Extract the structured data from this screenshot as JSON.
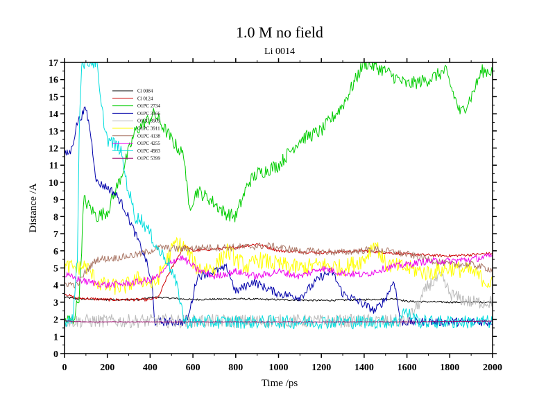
{
  "chart_data": {
    "type": "line",
    "title": "1.0 M no field",
    "subtitle": "Li 0014",
    "xlabel": "Time /ps",
    "ylabel": "Distance /A",
    "xlim": [
      0,
      2000
    ],
    "ylim": [
      0,
      17
    ],
    "xticks": [
      0,
      200,
      400,
      600,
      800,
      1000,
      1200,
      1400,
      1600,
      1800,
      2000
    ],
    "yticks": [
      0,
      1,
      2,
      3,
      4,
      5,
      6,
      7,
      8,
      9,
      10,
      11,
      12,
      13,
      14,
      15,
      16,
      17
    ],
    "legend_position": "top-left",
    "series": [
      {
        "name": "Cl 0084",
        "color": "#000000",
        "noise": 0.05,
        "points": [
          [
            0,
            3.3
          ],
          [
            50,
            3.2
          ],
          [
            200,
            3.15
          ],
          [
            350,
            3.15
          ],
          [
            420,
            3.3
          ],
          [
            600,
            3.15
          ],
          [
            800,
            3.2
          ],
          [
            1000,
            3.15
          ],
          [
            1200,
            3.1
          ],
          [
            1400,
            3.15
          ],
          [
            1550,
            3.2
          ],
          [
            1600,
            3.05
          ],
          [
            1800,
            3.0
          ],
          [
            2000,
            3.0
          ]
        ]
      },
      {
        "name": "Cl 0124",
        "color": "#cc0000",
        "noise": 0.08,
        "points": [
          [
            0,
            3.5
          ],
          [
            50,
            3.25
          ],
          [
            200,
            3.15
          ],
          [
            400,
            3.15
          ],
          [
            440,
            3.3
          ],
          [
            480,
            4.5
          ],
          [
            560,
            6.3
          ],
          [
            600,
            6.0
          ],
          [
            800,
            6.2
          ],
          [
            900,
            6.4
          ],
          [
            1000,
            6.0
          ],
          [
            1200,
            5.9
          ],
          [
            1400,
            6.0
          ],
          [
            1600,
            5.8
          ],
          [
            1800,
            5.7
          ],
          [
            2000,
            5.85
          ]
        ]
      },
      {
        "name": "O1PC 2734",
        "color": "#00cc00",
        "noise": 0.4,
        "points": [
          [
            0,
            2.0
          ],
          [
            40,
            1.9
          ],
          [
            70,
            3.5
          ],
          [
            90,
            9.0
          ],
          [
            150,
            8.0
          ],
          [
            200,
            8.3
          ],
          [
            260,
            10.2
          ],
          [
            330,
            13.0
          ],
          [
            380,
            13.5
          ],
          [
            420,
            14.0
          ],
          [
            500,
            12.5
          ],
          [
            560,
            11.5
          ],
          [
            580,
            8.5
          ],
          [
            620,
            9.5
          ],
          [
            680,
            9.0
          ],
          [
            750,
            8.2
          ],
          [
            800,
            8.0
          ],
          [
            860,
            10.0
          ],
          [
            900,
            10.5
          ],
          [
            1000,
            11.0
          ],
          [
            1100,
            12.5
          ],
          [
            1200,
            13.0
          ],
          [
            1300,
            14.5
          ],
          [
            1380,
            16.5
          ],
          [
            1400,
            17.0
          ],
          [
            1500,
            16.5
          ],
          [
            1560,
            16.0
          ],
          [
            1600,
            15.7
          ],
          [
            1700,
            16.0
          ],
          [
            1780,
            16.5
          ],
          [
            1850,
            14.0
          ],
          [
            1900,
            15.0
          ],
          [
            1950,
            16.5
          ],
          [
            2000,
            16.5
          ]
        ]
      },
      {
        "name": "O1PC 3566",
        "color": "#0000aa",
        "noise": 0.25,
        "points": [
          [
            0,
            11.6
          ],
          [
            30,
            11.8
          ],
          [
            60,
            13.5
          ],
          [
            100,
            14.3
          ],
          [
            120,
            13.0
          ],
          [
            150,
            10.0
          ],
          [
            200,
            9.7
          ],
          [
            240,
            9.3
          ],
          [
            280,
            8.5
          ],
          [
            330,
            7.0
          ],
          [
            380,
            5.5
          ],
          [
            410,
            4.0
          ],
          [
            420,
            1.85
          ],
          [
            560,
            1.85
          ],
          [
            580,
            2.2
          ],
          [
            620,
            4.5
          ],
          [
            700,
            4.8
          ],
          [
            760,
            5.0
          ],
          [
            800,
            3.6
          ],
          [
            880,
            4.2
          ],
          [
            1000,
            3.5
          ],
          [
            1100,
            3.3
          ],
          [
            1200,
            4.5
          ],
          [
            1250,
            4.8
          ],
          [
            1300,
            3.5
          ],
          [
            1380,
            3.0
          ],
          [
            1450,
            2.5
          ],
          [
            1500,
            3.2
          ],
          [
            1540,
            4.3
          ],
          [
            1570,
            1.85
          ],
          [
            2000,
            1.85
          ]
        ]
      },
      {
        "name": "O1PC 3909",
        "color": "#bbbbbb",
        "noise": 0.4,
        "points": [
          [
            0,
            1.9
          ],
          [
            1500,
            1.9
          ],
          [
            1600,
            1.9
          ],
          [
            1660,
            3.0
          ],
          [
            1700,
            4.0
          ],
          [
            1760,
            4.5
          ],
          [
            1800,
            3.5
          ],
          [
            1850,
            3.2
          ],
          [
            1900,
            3.0
          ],
          [
            2000,
            3.0
          ]
        ]
      },
      {
        "name": "O1PC 3911",
        "color": "#ffff00",
        "noise": 0.5,
        "points": [
          [
            0,
            5.0
          ],
          [
            100,
            5.1
          ],
          [
            150,
            4.2
          ],
          [
            200,
            3.9
          ],
          [
            280,
            3.9
          ],
          [
            350,
            4.4
          ],
          [
            420,
            4.0
          ],
          [
            480,
            5.5
          ],
          [
            520,
            6.5
          ],
          [
            560,
            6.2
          ],
          [
            620,
            5.0
          ],
          [
            700,
            5.0
          ],
          [
            760,
            6.0
          ],
          [
            800,
            5.5
          ],
          [
            860,
            5.0
          ],
          [
            900,
            5.5
          ],
          [
            1000,
            5.2
          ],
          [
            1100,
            5.0
          ],
          [
            1200,
            5.2
          ],
          [
            1300,
            5.0
          ],
          [
            1400,
            5.5
          ],
          [
            1450,
            6.5
          ],
          [
            1500,
            5.2
          ],
          [
            1600,
            5.0
          ],
          [
            1700,
            4.7
          ],
          [
            1800,
            5.0
          ],
          [
            1900,
            4.8
          ],
          [
            2000,
            4.0
          ]
        ]
      },
      {
        "name": "O1PC 4138",
        "color": "#aa7766",
        "noise": 0.2,
        "points": [
          [
            0,
            4.1
          ],
          [
            60,
            4.0
          ],
          [
            100,
            4.8
          ],
          [
            150,
            5.5
          ],
          [
            250,
            5.6
          ],
          [
            350,
            5.8
          ],
          [
            450,
            6.2
          ],
          [
            550,
            6.1
          ],
          [
            650,
            6.2
          ],
          [
            800,
            6.2
          ],
          [
            950,
            6.3
          ],
          [
            1100,
            6.0
          ],
          [
            1300,
            5.9
          ],
          [
            1450,
            6.1
          ],
          [
            1500,
            6.0
          ],
          [
            1600,
            5.8
          ],
          [
            1700,
            5.5
          ],
          [
            1800,
            5.2
          ],
          [
            1900,
            5.2
          ],
          [
            2000,
            4.9
          ]
        ]
      },
      {
        "name": "O1PC 4255",
        "color": "#ee00ee",
        "noise": 0.2,
        "points": [
          [
            0,
            4.6
          ],
          [
            100,
            4.2
          ],
          [
            200,
            4.0
          ],
          [
            300,
            4.1
          ],
          [
            400,
            4.3
          ],
          [
            450,
            4.6
          ],
          [
            500,
            5.4
          ],
          [
            550,
            5.6
          ],
          [
            620,
            4.9
          ],
          [
            700,
            4.5
          ],
          [
            800,
            4.8
          ],
          [
            900,
            4.5
          ],
          [
            1000,
            4.8
          ],
          [
            1100,
            4.5
          ],
          [
            1200,
            5.0
          ],
          [
            1300,
            4.7
          ],
          [
            1400,
            4.6
          ],
          [
            1500,
            5.0
          ],
          [
            1600,
            5.2
          ],
          [
            1700,
            5.4
          ],
          [
            1800,
            5.4
          ],
          [
            1900,
            5.5
          ],
          [
            2000,
            5.7
          ]
        ]
      },
      {
        "name": "O1PC 4983",
        "color": "#00dddd",
        "noise": 0.4,
        "points": [
          [
            0,
            1.9
          ],
          [
            40,
            2.2
          ],
          [
            60,
            5.5
          ],
          [
            70,
            14.0
          ],
          [
            80,
            17.0
          ],
          [
            150,
            17.0
          ],
          [
            170,
            14.5
          ],
          [
            200,
            12.5
          ],
          [
            260,
            12.0
          ],
          [
            290,
            10.0
          ],
          [
            330,
            8.0
          ],
          [
            360,
            7.8
          ],
          [
            400,
            7.0
          ],
          [
            440,
            6.0
          ],
          [
            480,
            5.5
          ],
          [
            510,
            4.5
          ],
          [
            540,
            3.2
          ],
          [
            560,
            1.85
          ],
          [
            1560,
            1.85
          ],
          [
            1580,
            2.5
          ],
          [
            1620,
            2.2
          ],
          [
            1660,
            1.85
          ],
          [
            2000,
            1.85
          ]
        ]
      },
      {
        "name": "O1PC 5399",
        "color": "#990066",
        "noise": 0.02,
        "points": [
          [
            0,
            1.9
          ],
          [
            100,
            1.85
          ],
          [
            400,
            1.85
          ],
          [
            800,
            1.85
          ],
          [
            1200,
            1.85
          ],
          [
            1600,
            1.85
          ],
          [
            2000,
            1.9
          ]
        ]
      }
    ]
  }
}
